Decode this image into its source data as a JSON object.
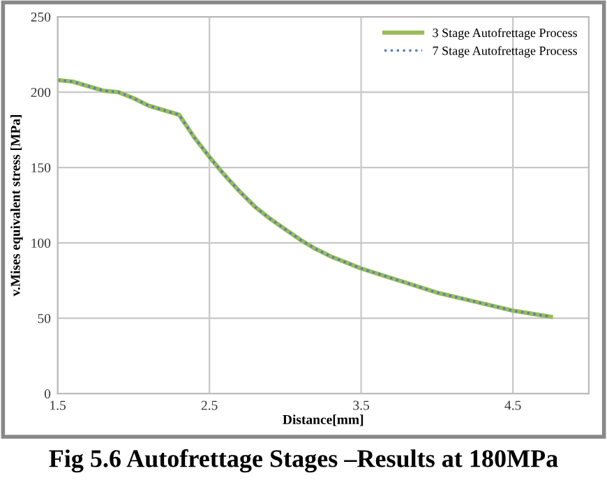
{
  "chart_data": {
    "type": "line",
    "xlabel": "Distance[mm]",
    "ylabel": "v.Mises equivalent stress [MPa]",
    "annotations": [
      "Fig 5.6 Autofrettage Stages –Results at 180MPa"
    ],
    "x": [
      1.5,
      1.6,
      1.7,
      1.8,
      1.9,
      2.0,
      2.1,
      2.2,
      2.3,
      2.4,
      2.5,
      2.6,
      2.7,
      2.8,
      2.9,
      3.0,
      3.1,
      3.2,
      3.3,
      3.4,
      3.5,
      3.75,
      4.0,
      4.25,
      4.5,
      4.75
    ],
    "series": [
      {
        "name": "3 Stage Autofrettage Process",
        "color": "#9bbb59",
        "line_style": "solid",
        "values": [
          208,
          207,
          204,
          201,
          200,
          196,
          191,
          188,
          185,
          170,
          157,
          145,
          134,
          124,
          116,
          109,
          102,
          96,
          91,
          87,
          83,
          75,
          67,
          61,
          55,
          51
        ]
      },
      {
        "name": "7 Stage Autofrettage Process",
        "color": "#4f81bd",
        "line_style": "dotted",
        "values": [
          208,
          207,
          204,
          201,
          200,
          196,
          191,
          188,
          185,
          170,
          157,
          145,
          134,
          124,
          116,
          109,
          102,
          96,
          91,
          87,
          83,
          75,
          67,
          61,
          55,
          51
        ]
      }
    ],
    "xlim": [
      1.5,
      5.0
    ],
    "xticks": [
      1.5,
      2.5,
      3.5,
      4.5
    ],
    "ylim": [
      0,
      250
    ],
    "yticks": [
      0,
      50,
      100,
      150,
      200,
      250
    ],
    "grid": true,
    "legend": "top right",
    "marker": "none"
  }
}
